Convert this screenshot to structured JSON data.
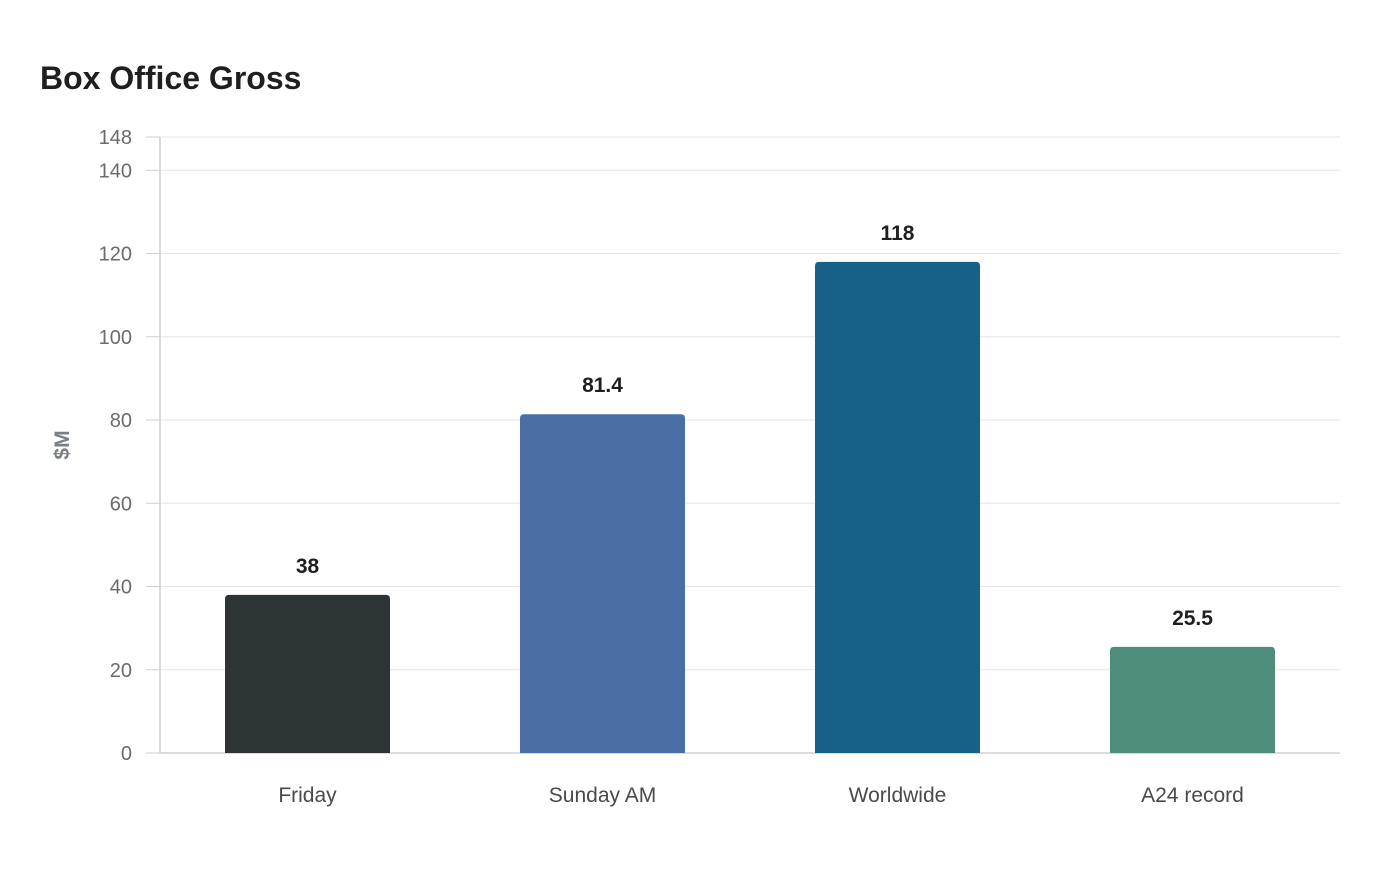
{
  "chart_data": {
    "type": "bar",
    "title": "Box Office Gross",
    "xlabel": "",
    "ylabel": "$M",
    "categories": [
      "Friday",
      "Sunday AM",
      "Worldwide",
      "A24 record"
    ],
    "values": [
      38,
      81.4,
      118,
      25.5
    ],
    "data_labels": [
      "38",
      "81.4",
      "118",
      "25.5"
    ],
    "colors": [
      "#2d3436",
      "#4a6fa5",
      "#166187",
      "#4e8d7c"
    ],
    "ylim": [
      0,
      148
    ],
    "y_ticks": [
      0,
      20,
      40,
      60,
      80,
      100,
      120,
      140,
      148
    ],
    "grid": true,
    "legend": "none"
  }
}
